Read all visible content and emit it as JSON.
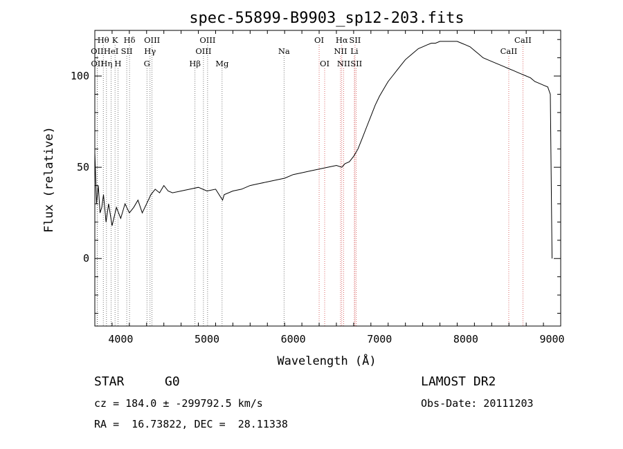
{
  "chart_data": {
    "type": "line",
    "title": "spec-55899-B9903_sp12-203.fits",
    "xlabel": "Wavelength (Å)",
    "ylabel": "Flux (relative)",
    "xlim": [
      3700,
      9100
    ],
    "ylim": [
      -37,
      125
    ],
    "x_ticks": [
      4000,
      5000,
      6000,
      7000,
      8000,
      9000
    ],
    "y_ticks": [
      0,
      50,
      100
    ],
    "grid": false,
    "series": [
      {
        "x": [
          3700,
          3720,
          3740,
          3760,
          3780,
          3800,
          3830,
          3860,
          3900,
          3950,
          4000,
          4050,
          4100,
          4150,
          4200,
          4250,
          4300,
          4350,
          4400,
          4450,
          4500,
          4550,
          4600,
          4700,
          4800,
          4900,
          5000,
          5100,
          5180,
          5200,
          5300,
          5400,
          5500,
          5600,
          5700,
          5800,
          5900,
          6000,
          6100,
          6200,
          6300,
          6400,
          6500,
          6563,
          6600,
          6650,
          6700,
          6750,
          6800,
          6850,
          6900,
          6950,
          7000,
          7050,
          7100,
          7150,
          7200,
          7250,
          7300,
          7350,
          7400,
          7450,
          7500,
          7550,
          7600,
          7650,
          7700,
          7750,
          7800,
          7850,
          7900,
          7950,
          8000,
          8050,
          8100,
          8150,
          8200,
          8250,
          8300,
          8350,
          8400,
          8450,
          8500,
          8550,
          8600,
          8650,
          8700,
          8750,
          8800,
          8850,
          8900,
          8950,
          8980,
          9000
        ],
        "y": [
          58,
          30,
          40,
          25,
          28,
          35,
          20,
          30,
          18,
          28,
          22,
          30,
          25,
          28,
          32,
          25,
          30,
          35,
          38,
          36,
          40,
          37,
          36,
          37,
          38,
          39,
          37,
          38,
          32,
          35,
          37,
          38,
          40,
          41,
          42,
          43,
          44,
          46,
          47,
          48,
          49,
          50,
          51,
          50,
          52,
          53,
          56,
          60,
          66,
          72,
          78,
          84,
          89,
          93,
          97,
          100,
          103,
          106,
          109,
          111,
          113,
          115,
          116,
          117,
          118,
          118,
          119,
          119,
          119,
          119,
          119,
          118,
          117,
          116,
          114,
          112,
          110,
          109,
          108,
          107,
          106,
          105,
          104,
          103,
          102,
          101,
          100,
          99,
          97,
          96,
          95,
          94,
          90,
          0
        ]
      }
    ],
    "spectral_lines": [
      {
        "label": "Hθ",
        "x": 3798,
        "row": 1
      },
      {
        "label": "K",
        "x": 3934,
        "row": 1
      },
      {
        "label": "Hδ",
        "x": 4102,
        "row": 1
      },
      {
        "label": "OIII",
        "x": 4363,
        "row": 1
      },
      {
        "label": "OIII",
        "x": 5007,
        "row": 1
      },
      {
        "label": "OI",
        "x": 6300,
        "row": 1
      },
      {
        "label": "Hα",
        "x": 6563,
        "row": 1
      },
      {
        "label": "SII",
        "x": 6716,
        "row": 1
      },
      {
        "label": "CaII",
        "x": 8662,
        "row": 1
      },
      {
        "label": "OII",
        "x": 3727,
        "row": 2
      },
      {
        "label": "HeI",
        "x": 3889,
        "row": 2
      },
      {
        "label": "SII",
        "x": 4070,
        "row": 2
      },
      {
        "label": "Hγ",
        "x": 4340,
        "row": 2
      },
      {
        "label": "OIII",
        "x": 4959,
        "row": 2
      },
      {
        "label": "Na",
        "x": 5893,
        "row": 2
      },
      {
        "label": "NII",
        "x": 6548,
        "row": 2
      },
      {
        "label": "Li",
        "x": 6708,
        "row": 2
      },
      {
        "label": "CaII",
        "x": 8498,
        "row": 2
      },
      {
        "label": "OII",
        "x": 3729,
        "row": 3
      },
      {
        "label": "Hη",
        "x": 3835,
        "row": 3
      },
      {
        "label": "H",
        "x": 3968,
        "row": 3
      },
      {
        "label": "G",
        "x": 4304,
        "row": 3
      },
      {
        "label": "Hβ",
        "x": 4861,
        "row": 3
      },
      {
        "label": "Mg",
        "x": 5175,
        "row": 3
      },
      {
        "label": "OI",
        "x": 6364,
        "row": 3
      },
      {
        "label": "NII",
        "x": 6584,
        "row": 3
      },
      {
        "label": "SII",
        "x": 6731,
        "row": 3
      }
    ]
  },
  "info": {
    "object_type": "STAR",
    "subclass": "G0",
    "survey": "LAMOST DR2",
    "redshift": "cz = 184.0 ± -299792.5 km/s",
    "obs_date": "Obs-Date: 20111203",
    "coords": "RA =  16.73822, DEC =  28.11338"
  }
}
